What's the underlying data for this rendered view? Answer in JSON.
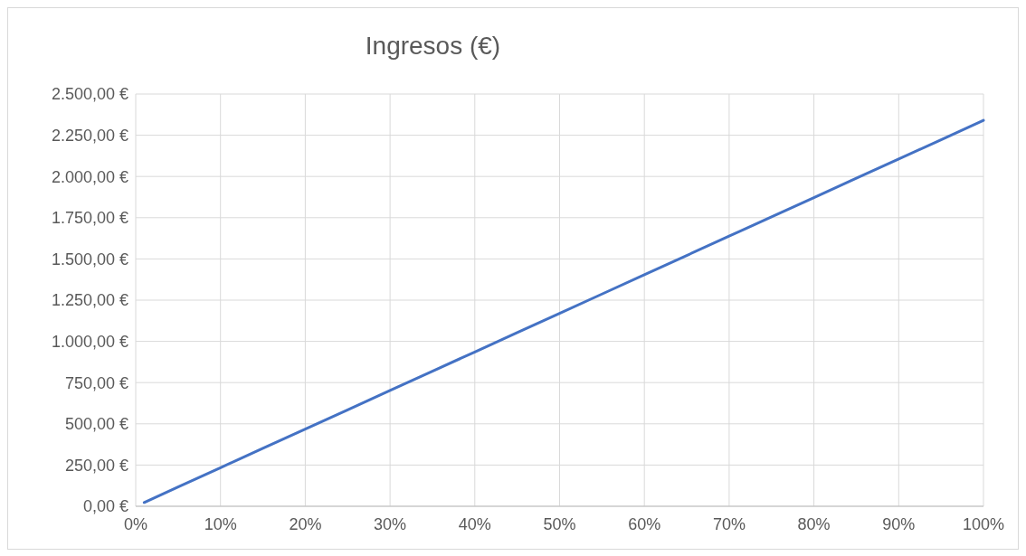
{
  "chart_data": {
    "type": "line",
    "title": "Ingresos (€)",
    "x": [
      1,
      5,
      10,
      15,
      20,
      25,
      30,
      35,
      40,
      45,
      50,
      55,
      60,
      65,
      70,
      75,
      80,
      85,
      90,
      95,
      100
    ],
    "series": [
      {
        "color": "#4472c4",
        "values": [
          23,
          117,
          234,
          351,
          468,
          585,
          702,
          819,
          936,
          1053,
          1170,
          1287,
          1404,
          1521,
          1638,
          1755,
          1872,
          1989,
          2106,
          2223,
          2340
        ]
      }
    ],
    "xlim": [
      0,
      100
    ],
    "xticks": [
      {
        "value": 0,
        "label": "0%"
      },
      {
        "value": 10,
        "label": "10%"
      },
      {
        "value": 20,
        "label": "20%"
      },
      {
        "value": 30,
        "label": "30%"
      },
      {
        "value": 40,
        "label": "40%"
      },
      {
        "value": 50,
        "label": "50%"
      },
      {
        "value": 60,
        "label": "60%"
      },
      {
        "value": 70,
        "label": "70%"
      },
      {
        "value": 80,
        "label": "80%"
      },
      {
        "value": 90,
        "label": "90%"
      },
      {
        "value": 100,
        "label": "100%"
      }
    ],
    "ylim": [
      0,
      2500
    ],
    "yticks": [
      {
        "value": 0,
        "label": "0,00 €"
      },
      {
        "value": 250,
        "label": "250,00 €"
      },
      {
        "value": 500,
        "label": "500,00 €"
      },
      {
        "value": 750,
        "label": "750,00 €"
      },
      {
        "value": 1000,
        "label": "1.000,00 €"
      },
      {
        "value": 1250,
        "label": "1.250,00 €"
      },
      {
        "value": 1500,
        "label": "1.500,00 €"
      },
      {
        "value": 1750,
        "label": "1.750,00 €"
      },
      {
        "value": 2000,
        "label": "2.000,00 €"
      },
      {
        "value": 2250,
        "label": "2.250,00 €"
      },
      {
        "value": 2500,
        "label": "2.500,00 €"
      }
    ],
    "grid": true,
    "marker": "none",
    "line_style": "solid"
  }
}
